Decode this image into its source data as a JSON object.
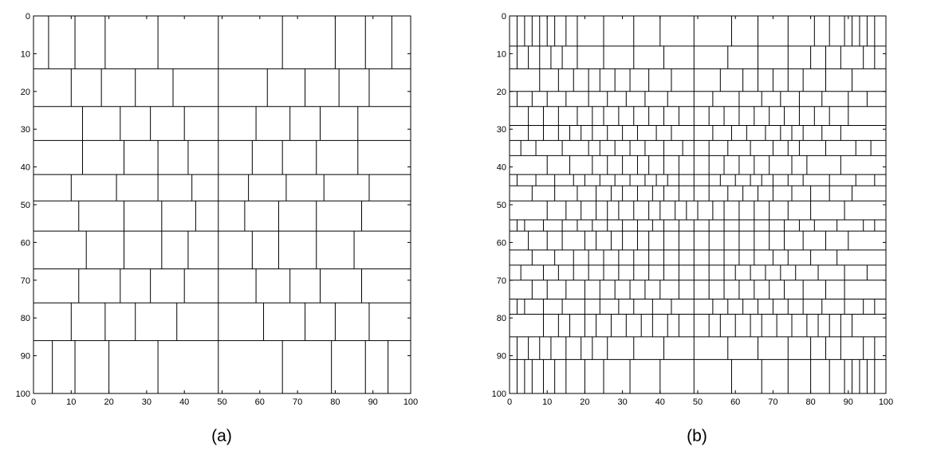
{
  "diagrams": [
    {
      "caption": "(a)",
      "x_ticks": [
        "0",
        "10",
        "20",
        "30",
        "40",
        "50",
        "60",
        "70",
        "80",
        "90",
        "100"
      ],
      "y_ticks": [
        "0",
        "10",
        "20",
        "30",
        "40",
        "50",
        "60",
        "70",
        "80",
        "90",
        "100"
      ],
      "rows": [
        {
          "y0": 0,
          "y1": 14,
          "splits": [
            4,
            11,
            19,
            33,
            49,
            66,
            80,
            88,
            95
          ]
        },
        {
          "y0": 14,
          "y1": 24,
          "splits": [
            10,
            18,
            27,
            37,
            49,
            62,
            72,
            81,
            89
          ]
        },
        {
          "y0": 24,
          "y1": 33,
          "splits": [
            13,
            23,
            31,
            40,
            49,
            59,
            68,
            76,
            86
          ]
        },
        {
          "y0": 33,
          "y1": 42,
          "splits": [
            13,
            24,
            33,
            41,
            49,
            58,
            66,
            75,
            86
          ]
        },
        {
          "y0": 42,
          "y1": 49,
          "splits": [
            10,
            22,
            33,
            42,
            49,
            57,
            67,
            77,
            89
          ]
        },
        {
          "y0": 49,
          "y1": 57,
          "splits": [
            12,
            24,
            34,
            43,
            49,
            56,
            65,
            75,
            87
          ]
        },
        {
          "y0": 57,
          "y1": 67,
          "splits": [
            14,
            24,
            34,
            41,
            49,
            58,
            65,
            75,
            85
          ]
        },
        {
          "y0": 67,
          "y1": 76,
          "splits": [
            12,
            23,
            31,
            40,
            49,
            59,
            68,
            76,
            87
          ]
        },
        {
          "y0": 76,
          "y1": 86,
          "splits": [
            10,
            19,
            27,
            38,
            49,
            61,
            72,
            80,
            89
          ]
        },
        {
          "y0": 86,
          "y1": 100,
          "splits": [
            5,
            11,
            20,
            33,
            49,
            66,
            79,
            88,
            94
          ]
        }
      ]
    },
    {
      "caption": "(b)",
      "x_ticks": [
        "0",
        "10",
        "20",
        "30",
        "40",
        "50",
        "60",
        "70",
        "80",
        "90",
        "100"
      ],
      "y_ticks": [
        "0",
        "10",
        "20",
        "30",
        "40",
        "50",
        "60",
        "70",
        "80",
        "90",
        "100"
      ],
      "rows": [
        {
          "y0": 0,
          "y1": 8,
          "splits": [
            2,
            4,
            6,
            8,
            10,
            12,
            15,
            18,
            25,
            33,
            40,
            49,
            59,
            66,
            74,
            81,
            85,
            89,
            91,
            93,
            95,
            97
          ]
        },
        {
          "y0": 8,
          "y1": 14,
          "splits": [
            2,
            5,
            8,
            11,
            14,
            18,
            25,
            33,
            41,
            49,
            58,
            66,
            74,
            80,
            84,
            88,
            94,
            97
          ]
        },
        {
          "y0": 14,
          "y1": 20,
          "splits": [
            8,
            13,
            17,
            21,
            24,
            28,
            32,
            37,
            43,
            49,
            56,
            62,
            66,
            70,
            74,
            78,
            84,
            91
          ]
        },
        {
          "y0": 20,
          "y1": 24,
          "splits": [
            2,
            6,
            10,
            15,
            21,
            26,
            31,
            36,
            42,
            49,
            54,
            61,
            67,
            72,
            77,
            83,
            90,
            95
          ]
        },
        {
          "y0": 24,
          "y1": 29,
          "splits": [
            5,
            9,
            13,
            18,
            22,
            25,
            29,
            33,
            37,
            41,
            45,
            49,
            53,
            57,
            61,
            65,
            69,
            73,
            77,
            81,
            85,
            90
          ]
        },
        {
          "y0": 29,
          "y1": 33,
          "splits": [
            5,
            9,
            13,
            16,
            19,
            22,
            26,
            30,
            34,
            39,
            43,
            49,
            54,
            59,
            63,
            68,
            72,
            75,
            78,
            83,
            88
          ]
        },
        {
          "y0": 33,
          "y1": 37,
          "splits": [
            3,
            7,
            14,
            21,
            24,
            28,
            32,
            36,
            41,
            46,
            49,
            53,
            58,
            64,
            70,
            74,
            77,
            84,
            92,
            96
          ]
        },
        {
          "y0": 37,
          "y1": 42,
          "splits": [
            10,
            16,
            22,
            26,
            30,
            34,
            37,
            41,
            45,
            49,
            53,
            57,
            61,
            65,
            69,
            75,
            79,
            88
          ]
        },
        {
          "y0": 42,
          "y1": 45,
          "splits": [
            2,
            7,
            12,
            17,
            20,
            24,
            28,
            32,
            36,
            39,
            42,
            45,
            49,
            53,
            56,
            60,
            64,
            67,
            70,
            74,
            78,
            85,
            92,
            97
          ]
        },
        {
          "y0": 45,
          "y1": 49,
          "splits": [
            6,
            12,
            18,
            23,
            27,
            30,
            34,
            38,
            41,
            45,
            49,
            53,
            58,
            62,
            66,
            70,
            75,
            80,
            85,
            91
          ]
        },
        {
          "y0": 49,
          "y1": 54,
          "splits": [
            10,
            15,
            19,
            23,
            26,
            29,
            33,
            37,
            40,
            44,
            47,
            50,
            54,
            57,
            61,
            65,
            69,
            74,
            80,
            89
          ]
        },
        {
          "y0": 54,
          "y1": 57,
          "splits": [
            2,
            4,
            9,
            14,
            18,
            22,
            26,
            30,
            34,
            38,
            41,
            45,
            49,
            53,
            57,
            61,
            65,
            69,
            73,
            77,
            81,
            87,
            94,
            97
          ]
        },
        {
          "y0": 57,
          "y1": 62,
          "splits": [
            5,
            10,
            14,
            20,
            23,
            27,
            30,
            34,
            37,
            41,
            45,
            49,
            53,
            57,
            61,
            65,
            69,
            73,
            78,
            84,
            90
          ]
        },
        {
          "y0": 62,
          "y1": 66,
          "splits": [
            6,
            12,
            17,
            21,
            25,
            29,
            33,
            37,
            41,
            45,
            49,
            53,
            57,
            61,
            65,
            70,
            74,
            80,
            87
          ]
        },
        {
          "y0": 66,
          "y1": 70,
          "splits": [
            3,
            9,
            13,
            17,
            21,
            25,
            29,
            33,
            37,
            41,
            45,
            49,
            53,
            57,
            60,
            64,
            68,
            72,
            76,
            82,
            89,
            95
          ]
        },
        {
          "y0": 70,
          "y1": 75,
          "splits": [
            6,
            10,
            15,
            20,
            24,
            28,
            32,
            36,
            40,
            45,
            49,
            53,
            57,
            61,
            65,
            69,
            73,
            78,
            84,
            89
          ]
        },
        {
          "y0": 75,
          "y1": 79,
          "splits": [
            2,
            4,
            9,
            14,
            20,
            24,
            29,
            33,
            38,
            43,
            49,
            54,
            58,
            62,
            66,
            70,
            74,
            78,
            83,
            89,
            94,
            97
          ]
        },
        {
          "y0": 79,
          "y1": 85,
          "splits": [
            9,
            13,
            16,
            20,
            23,
            27,
            31,
            35,
            38,
            42,
            45,
            49,
            53,
            56,
            60,
            64,
            67,
            71,
            75,
            79,
            82,
            85,
            88,
            91
          ]
        },
        {
          "y0": 85,
          "y1": 91,
          "splits": [
            2,
            5,
            8,
            11,
            15,
            19,
            22,
            26,
            33,
            41,
            49,
            58,
            66,
            74,
            80,
            84,
            88,
            94,
            97
          ]
        },
        {
          "y0": 91,
          "y1": 100,
          "splits": [
            2,
            4,
            6,
            9,
            12,
            15,
            20,
            25,
            32,
            40,
            49,
            59,
            67,
            74,
            80,
            85,
            89,
            91,
            93,
            95,
            97
          ]
        }
      ]
    }
  ]
}
